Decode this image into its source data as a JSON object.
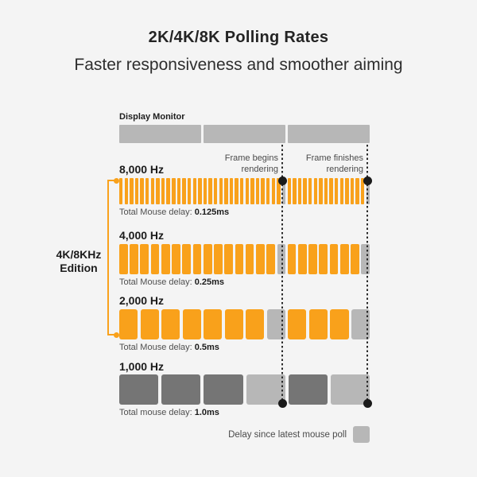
{
  "header": {
    "title": "2K/4K/8K Polling Rates",
    "subtitle": "Faster responsiveness and smoother aiming"
  },
  "colors": {
    "orange": "#F9A11B",
    "gray_light": "#B7B7B7",
    "gray_dark": "#757575",
    "black": "#1A1A1A",
    "background": "#F4F4F4"
  },
  "monitor": {
    "label": "Display Monitor",
    "segment_count": 3,
    "segment_color": "gray_light"
  },
  "annotations": {
    "frame_begins": "Frame begins rendering",
    "frame_finishes": "Frame finishes rendering"
  },
  "bracket": {
    "line1": "4K/8KHz",
    "line2": "Edition",
    "color": "orange"
  },
  "rows": [
    {
      "rate": "8,000 Hz",
      "delay_label": "Total Mouse delay:",
      "delay_value": "0.125ms",
      "bars": {
        "count": 48,
        "delay_positions": [
          32,
          48
        ],
        "base_color": "orange",
        "delay_color": "gray_light"
      }
    },
    {
      "rate": "4,000 Hz",
      "delay_label": "Total Mouse delay:",
      "delay_value": "0.25ms",
      "bars": {
        "count": 24,
        "delay_positions": [
          16,
          24
        ],
        "base_color": "orange",
        "delay_color": "gray_light"
      }
    },
    {
      "rate": "2,000 Hz",
      "delay_label": "Total Mouse delay:",
      "delay_value": "0.5ms",
      "bars": {
        "count": 12,
        "delay_positions": [
          8,
          12
        ],
        "base_color": "orange",
        "delay_color": "gray_light"
      }
    },
    {
      "rate": "1,000 Hz",
      "delay_label": "Total mouse delay:",
      "delay_value": "1.0ms",
      "bars": {
        "count": 6,
        "delay_positions": [
          4,
          6
        ],
        "base_color": "gray_dark",
        "delay_color": "gray_light"
      }
    }
  ],
  "legend": {
    "label": "Delay since latest mouse poll",
    "swatch_color": "gray_light"
  }
}
